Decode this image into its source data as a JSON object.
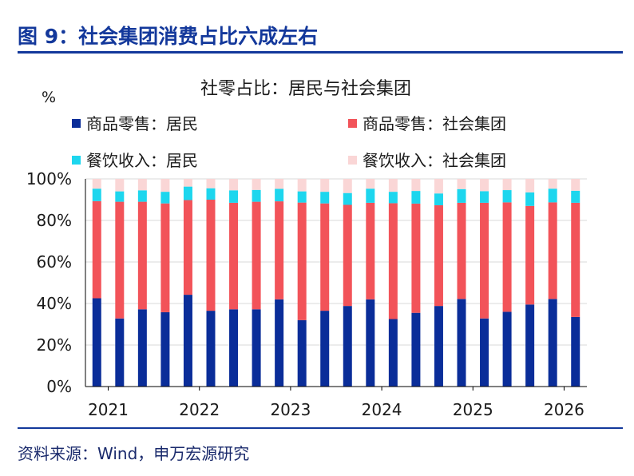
{
  "figure_title": "图 9：社会集团消费占比六成左右",
  "source_note": "资料来源：Wind，申万宏源研究",
  "chart_data": {
    "type": "bar",
    "stacked": true,
    "title": "社零占比：居民与社会集团",
    "ylabel": "%",
    "ylim": [
      0,
      100
    ],
    "yticks": [
      "0%",
      "20%",
      "40%",
      "60%",
      "80%",
      "100%"
    ],
    "xticks": [
      "2021",
      "2022",
      "2023",
      "2024",
      "2025",
      "2026"
    ],
    "legend_position": "top",
    "series": [
      {
        "name": "商品零售：居民",
        "color": "#0a2d99",
        "values": [
          42.5,
          32.8,
          37.2,
          35.8,
          44.2,
          36.5,
          37.2,
          37.2,
          42.0,
          32.0,
          36.5,
          38.8,
          42.0,
          32.5,
          35.5,
          38.8,
          42.2,
          32.8,
          36.0,
          39.5,
          42.2,
          33.5
        ]
      },
      {
        "name": "商品零售：社会集团",
        "color": "#f25359",
        "values": [
          46.8,
          56.2,
          51.8,
          52.4,
          45.6,
          53.5,
          51.3,
          51.8,
          47.2,
          56.6,
          51.7,
          48.7,
          46.5,
          55.8,
          52.6,
          48.5,
          46.3,
          55.7,
          52.7,
          47.5,
          46.5,
          55.0
        ]
      },
      {
        "name": "餐饮收入：居民",
        "color": "#1dd6ee",
        "values": [
          6.0,
          5.0,
          5.5,
          5.6,
          6.5,
          5.5,
          6.0,
          5.7,
          6.0,
          5.4,
          5.6,
          5.7,
          6.8,
          5.5,
          6.1,
          5.7,
          6.6,
          5.6,
          5.9,
          6.5,
          6.6,
          5.8
        ]
      },
      {
        "name": "餐饮收入：社会集团",
        "color": "#fad6d6",
        "values": [
          4.7,
          6.0,
          5.5,
          6.2,
          3.7,
          4.5,
          5.5,
          5.3,
          4.8,
          6.0,
          6.2,
          6.8,
          4.7,
          6.2,
          5.8,
          7.0,
          4.9,
          5.9,
          5.4,
          6.5,
          4.7,
          5.7
        ]
      }
    ]
  }
}
